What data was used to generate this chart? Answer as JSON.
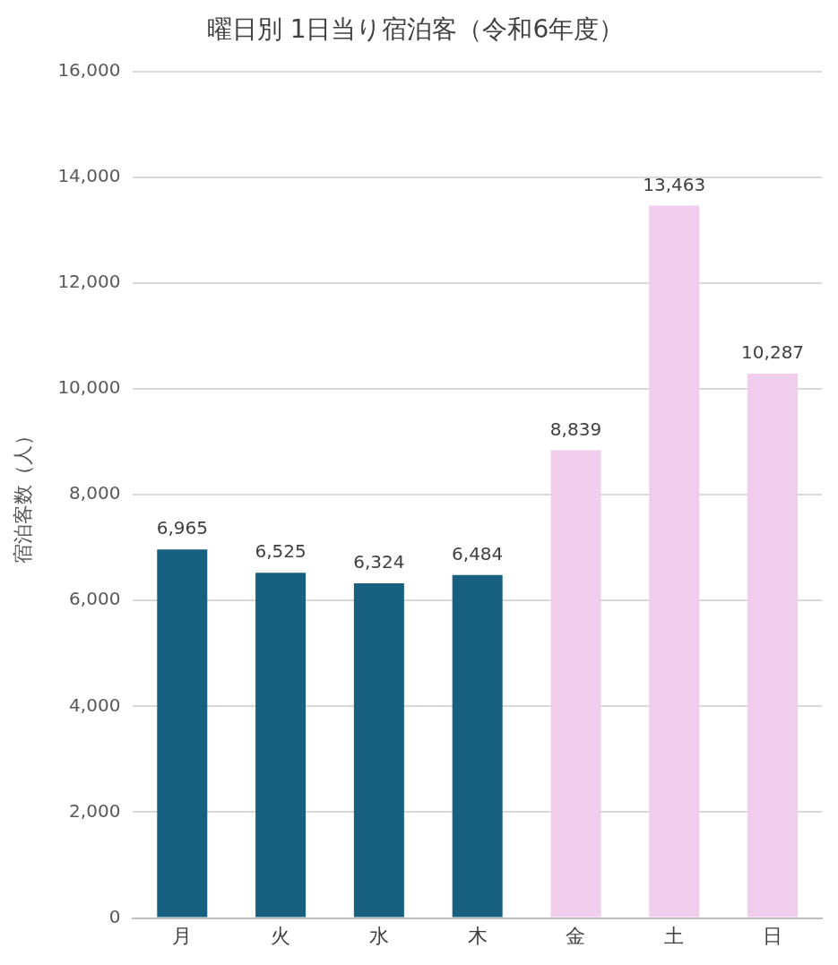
{
  "chart_data": {
    "type": "bar",
    "title": "曜日別 1日当り宿泊客（令和6年度）",
    "ylabel": "宿泊客数（人）",
    "categories": [
      "月",
      "火",
      "水",
      "木",
      "金",
      "土",
      "日"
    ],
    "values": [
      6965,
      6525,
      6324,
      6484,
      8839,
      13463,
      10287
    ],
    "colors": [
      "#17607f",
      "#17607f",
      "#17607f",
      "#17607f",
      "#f0cdec",
      "#f0cdec",
      "#f0cdec"
    ],
    "value_labels": [
      "6,965",
      "6,525",
      "6,324",
      "6,484",
      "8,839",
      "13,463",
      "10,287"
    ],
    "ylim": [
      0,
      16000
    ],
    "yticks": [
      {
        "value": 0,
        "label": "0"
      },
      {
        "value": 2000,
        "label": "2,000"
      },
      {
        "value": 4000,
        "label": "4,000"
      },
      {
        "value": 6000,
        "label": "6,000"
      },
      {
        "value": 8000,
        "label": "8,000"
      },
      {
        "value": 10000,
        "label": "10,000"
      },
      {
        "value": 12000,
        "label": "12,000"
      },
      {
        "value": 14000,
        "label": "14,000"
      },
      {
        "value": 16000,
        "label": "16,000"
      }
    ],
    "grid": "y"
  }
}
